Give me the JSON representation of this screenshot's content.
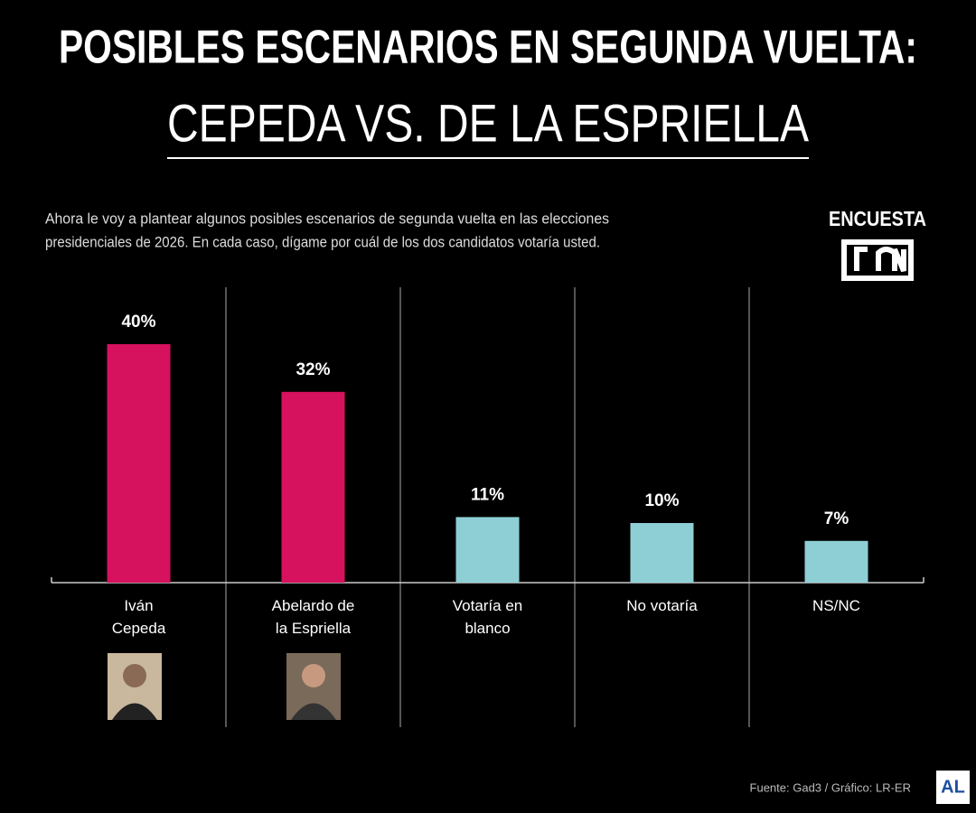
{
  "chart_data": {
    "type": "bar",
    "title": "POSIBLES ESCENARIOS EN SEGUNDA VUELTA:",
    "subtitle": "CEPEDA VS. DE LA ESPRIELLA",
    "description": [
      "Ahora le voy a plantear algunos posibles escenarios de segunda vuelta en las elecciones",
      "presidenciales de 2026. En cada caso, dígame por cuál de los dos candidatos votaría usted."
    ],
    "badge": "ENCUESTA",
    "categories": [
      "Iván Cepeda",
      "Abelardo de la Espriella",
      "Votaría en blanco",
      "No votaría",
      "NS/NC"
    ],
    "values": [
      40,
      32,
      11,
      10,
      7
    ],
    "value_labels": [
      "40%",
      "32%",
      "11%",
      "10%",
      "7%"
    ],
    "colors": [
      "#d6115d",
      "#d6115d",
      "#8ecfd5",
      "#8ecfd5",
      "#8ecfd5"
    ],
    "source": "Fuente: Gad3 / Gráfico: LR-ER",
    "brand": "AL"
  }
}
